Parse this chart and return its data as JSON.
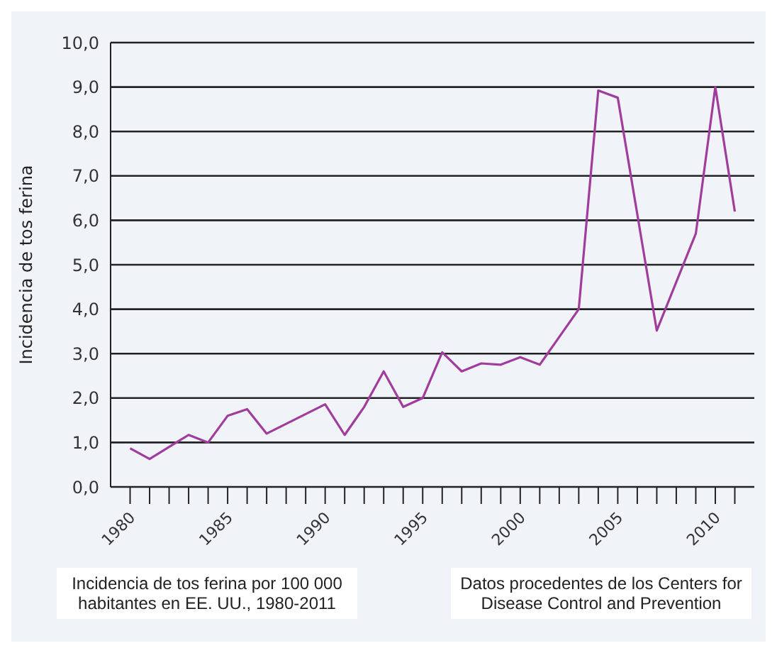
{
  "chart_data": {
    "type": "line",
    "ylabel": "Incidencia de tos ferina",
    "x": [
      1980,
      1981,
      1983,
      1984,
      1985,
      1986,
      1987,
      1990,
      1991,
      1992,
      1993,
      1994,
      1995,
      1996,
      1997,
      1998,
      1999,
      2000,
      2001,
      2003,
      2004,
      2005,
      2007,
      2009,
      2010,
      2011
    ],
    "series": [
      {
        "color": "#a03c9c",
        "values": [
          0.87,
          0.63,
          1.17,
          1.0,
          1.6,
          1.75,
          1.2,
          1.86,
          1.17,
          1.8,
          2.6,
          1.8,
          2.0,
          3.03,
          2.6,
          2.78,
          2.75,
          2.92,
          2.75,
          4.0,
          8.92,
          8.76,
          3.52,
          5.7,
          9.0,
          6.2
        ]
      }
    ],
    "xlim": [
      1979,
      2012
    ],
    "xticks": [
      {
        "value": 1980,
        "label": "1980"
      },
      {
        "value": 1981,
        "label": null
      },
      {
        "value": 1982,
        "label": null
      },
      {
        "value": 1983,
        "label": null
      },
      {
        "value": 1984,
        "label": null
      },
      {
        "value": 1985,
        "label": "1985"
      },
      {
        "value": 1986,
        "label": null
      },
      {
        "value": 1987,
        "label": null
      },
      {
        "value": 1988,
        "label": null
      },
      {
        "value": 1989,
        "label": null
      },
      {
        "value": 1990,
        "label": "1990"
      },
      {
        "value": 1991,
        "label": null
      },
      {
        "value": 1992,
        "label": null
      },
      {
        "value": 1993,
        "label": null
      },
      {
        "value": 1994,
        "label": null
      },
      {
        "value": 1995,
        "label": "1995"
      },
      {
        "value": 1996,
        "label": null
      },
      {
        "value": 1997,
        "label": null
      },
      {
        "value": 1998,
        "label": null
      },
      {
        "value": 1999,
        "label": null
      },
      {
        "value": 2000,
        "label": "2000"
      },
      {
        "value": 2001,
        "label": null
      },
      {
        "value": 2002,
        "label": null
      },
      {
        "value": 2003,
        "label": null
      },
      {
        "value": 2004,
        "label": null
      },
      {
        "value": 2005,
        "label": "2005"
      },
      {
        "value": 2006,
        "label": null
      },
      {
        "value": 2007,
        "label": null
      },
      {
        "value": 2008,
        "label": null
      },
      {
        "value": 2009,
        "label": null
      },
      {
        "value": 2010,
        "label": "2010"
      },
      {
        "value": 2011,
        "label": null
      }
    ],
    "ylim": [
      0,
      10
    ],
    "yticks": [
      {
        "value": 0,
        "label": "0,0"
      },
      {
        "value": 1,
        "label": "1,0"
      },
      {
        "value": 2,
        "label": "2,0"
      },
      {
        "value": 3,
        "label": "3,0"
      },
      {
        "value": 4,
        "label": "4,0"
      },
      {
        "value": 5,
        "label": "5,0"
      },
      {
        "value": 6,
        "label": "6,0"
      },
      {
        "value": 7,
        "label": "7,0"
      },
      {
        "value": 8,
        "label": "8,0"
      },
      {
        "value": 9,
        "label": "9,0"
      },
      {
        "value": 10,
        "label": "10,0"
      }
    ],
    "grid": "y",
    "marker": "none",
    "line_style": "solid",
    "annotations": [
      "Incidencia de tos ferina por 100 000 habitantes en EE. UU., 1980-2011",
      "Datos procedentes de los Centers for Disease Control and Prevention"
    ]
  }
}
